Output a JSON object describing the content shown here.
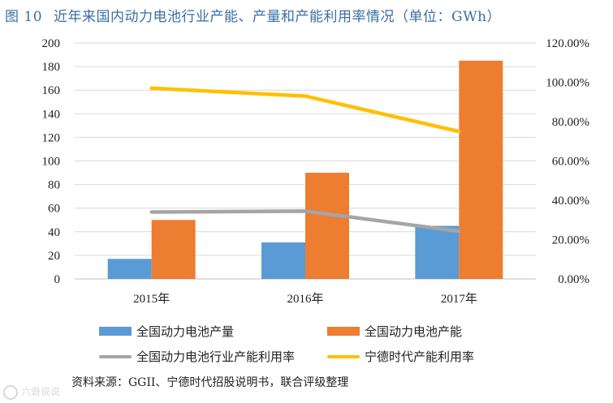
{
  "title": {
    "figure_number": "图 10",
    "text": "近年来国内动力电池行业产能、产量和产能利用率情况（单位：GWh）"
  },
  "chart_data": {
    "type": "bar+line",
    "categories": [
      "2015年",
      "2016年",
      "2017年"
    ],
    "bar_series": [
      {
        "name": "全国动力电池产量",
        "values": [
          17,
          31,
          45
        ],
        "color": "#5b9bd5"
      },
      {
        "name": "全国动力电池产能",
        "values": [
          50,
          90,
          185
        ],
        "color": "#ed7d31"
      }
    ],
    "line_series": [
      {
        "name": "全国动力电池行业产能利用率",
        "values": [
          34,
          34.5,
          24.3
        ],
        "color": "#a5a5a5",
        "axis": "right"
      },
      {
        "name": "宁德时代产能利用率",
        "values": [
          97,
          93,
          75
        ],
        "color": "#ffc000",
        "axis": "right"
      }
    ],
    "left_axis": {
      "min": 0,
      "max": 200,
      "step": 20,
      "ticks": [
        "0",
        "20",
        "40",
        "60",
        "80",
        "100",
        "120",
        "140",
        "160",
        "180",
        "200"
      ]
    },
    "right_axis": {
      "min": 0,
      "max": 120,
      "step": 20,
      "ticks": [
        "0.00%",
        "20.00%",
        "40.00%",
        "60.00%",
        "80.00%",
        "100.00%",
        "120.00%"
      ]
    },
    "grid": true
  },
  "legend": {
    "items": [
      {
        "label": "全国动力电池产量",
        "kind": "bar",
        "color": "#5b9bd5"
      },
      {
        "label": "全国动力电池产能",
        "kind": "bar",
        "color": "#ed7d31"
      },
      {
        "label": "全国动力电池行业产能利用率",
        "kind": "line",
        "color": "#a5a5a5"
      },
      {
        "label": "宁德时代产能利用率",
        "kind": "line",
        "color": "#ffc000"
      }
    ]
  },
  "source": "资料来源：GGII、宁德时代招股说明书，联合评级整理",
  "watermark": "六哥说说"
}
